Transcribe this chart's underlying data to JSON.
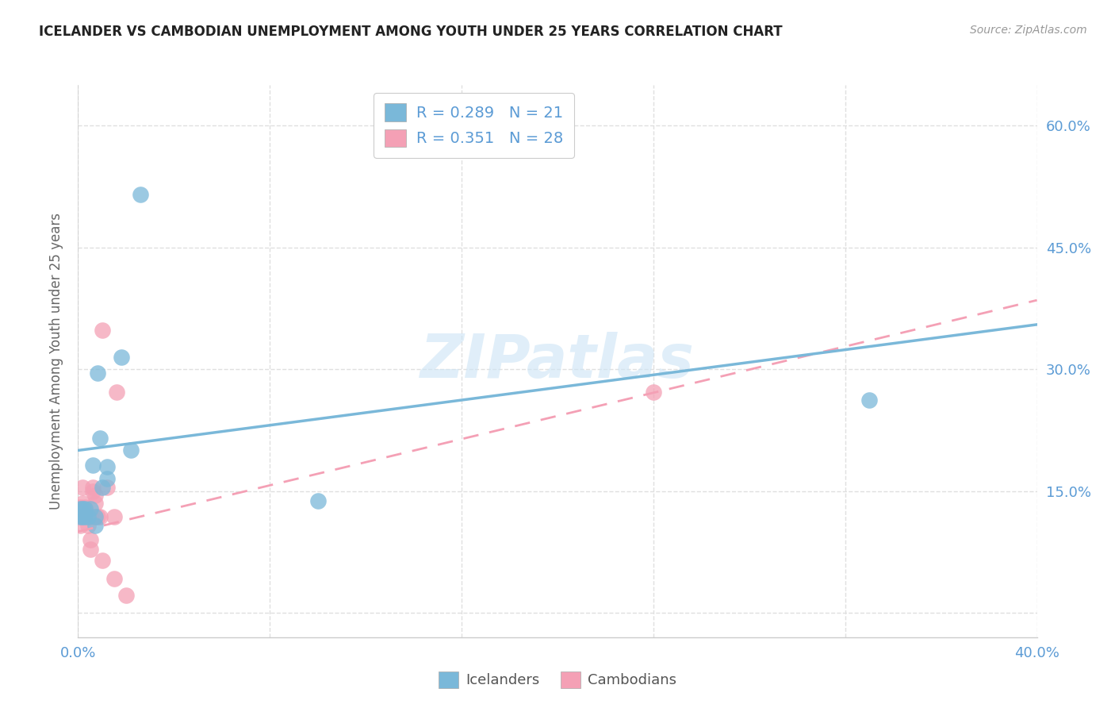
{
  "title": "ICELANDER VS CAMBODIAN UNEMPLOYMENT AMONG YOUTH UNDER 25 YEARS CORRELATION CHART",
  "source": "Source: ZipAtlas.com",
  "ylabel": "Unemployment Among Youth under 25 years",
  "xlim": [
    0.0,
    0.4
  ],
  "ylim": [
    -0.03,
    0.65
  ],
  "yticks": [
    0.0,
    0.15,
    0.3,
    0.45,
    0.6
  ],
  "ytick_labels_right": [
    "",
    "15.0%",
    "30.0%",
    "45.0%",
    "60.0%"
  ],
  "xticks": [
    0.0,
    0.08,
    0.16,
    0.24,
    0.32,
    0.4
  ],
  "legend_R_ice": "0.289",
  "legend_N_ice": "21",
  "legend_R_cam": "0.351",
  "legend_N_cam": "28",
  "watermark": "ZIPatlas",
  "icelander_color": "#7ab8d9",
  "cambodian_color": "#f4a0b5",
  "icelander_scatter": [
    [
      0.001,
      0.128
    ],
    [
      0.001,
      0.118
    ],
    [
      0.002,
      0.128
    ],
    [
      0.002,
      0.118
    ],
    [
      0.003,
      0.128
    ],
    [
      0.003,
      0.118
    ],
    [
      0.004,
      0.118
    ],
    [
      0.005,
      0.128
    ],
    [
      0.006,
      0.182
    ],
    [
      0.007,
      0.118
    ],
    [
      0.007,
      0.108
    ],
    [
      0.008,
      0.295
    ],
    [
      0.009,
      0.215
    ],
    [
      0.01,
      0.155
    ],
    [
      0.012,
      0.18
    ],
    [
      0.012,
      0.165
    ],
    [
      0.018,
      0.315
    ],
    [
      0.022,
      0.2
    ],
    [
      0.026,
      0.515
    ],
    [
      0.1,
      0.138
    ],
    [
      0.33,
      0.262
    ]
  ],
  "cambodian_scatter": [
    [
      0.001,
      0.13
    ],
    [
      0.001,
      0.125
    ],
    [
      0.001,
      0.118
    ],
    [
      0.001,
      0.108
    ],
    [
      0.002,
      0.135
    ],
    [
      0.002,
      0.128
    ],
    [
      0.002,
      0.155
    ],
    [
      0.003,
      0.122
    ],
    [
      0.003,
      0.13
    ],
    [
      0.004,
      0.118
    ],
    [
      0.004,
      0.108
    ],
    [
      0.005,
      0.118
    ],
    [
      0.005,
      0.09
    ],
    [
      0.005,
      0.078
    ],
    [
      0.006,
      0.155
    ],
    [
      0.006,
      0.15
    ],
    [
      0.007,
      0.145
    ],
    [
      0.007,
      0.135
    ],
    [
      0.008,
      0.118
    ],
    [
      0.009,
      0.118
    ],
    [
      0.01,
      0.348
    ],
    [
      0.01,
      0.065
    ],
    [
      0.012,
      0.155
    ],
    [
      0.015,
      0.118
    ],
    [
      0.015,
      0.042
    ],
    [
      0.016,
      0.272
    ],
    [
      0.02,
      0.022
    ],
    [
      0.24,
      0.272
    ]
  ],
  "ice_trend_x": [
    0.0,
    0.4
  ],
  "ice_trend_y": [
    0.2,
    0.355
  ],
  "cam_trend_x": [
    0.0,
    0.4
  ],
  "cam_trend_y": [
    0.1,
    0.385
  ],
  "background_color": "#ffffff",
  "grid_color": "#e0e0e0"
}
